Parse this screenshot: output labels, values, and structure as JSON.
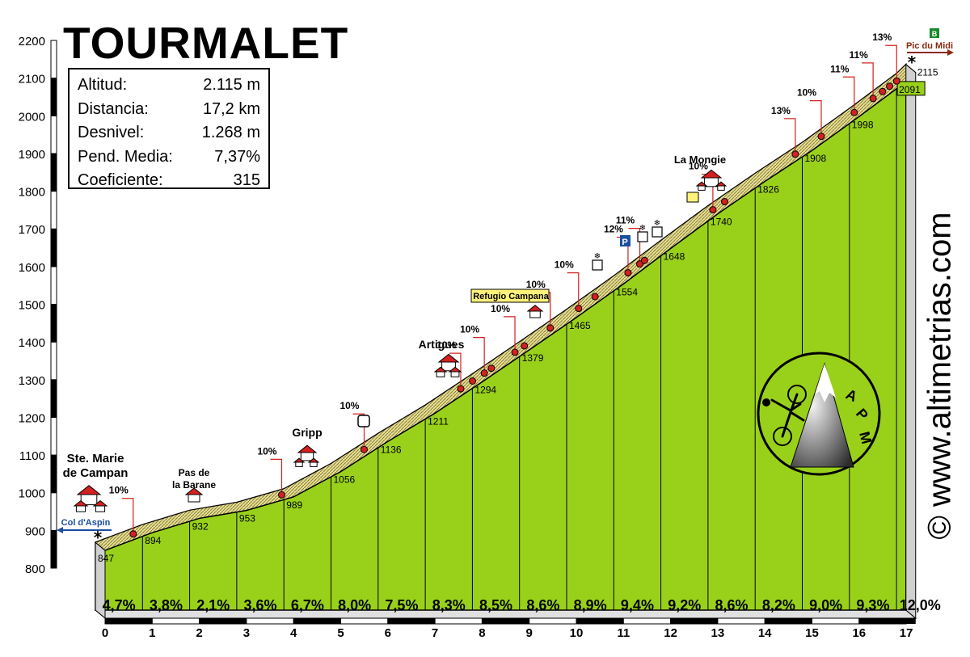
{
  "title": "TOURMALET",
  "stats": [
    {
      "label": "Altitud:",
      "value": "2.115 m"
    },
    {
      "label": "Distancia:",
      "value": "17,2 km"
    },
    {
      "label": "Desnivel:",
      "value": "1.268 m"
    },
    {
      "label": "Pend. Media:",
      "value": "7,37%"
    },
    {
      "label": "Coeficiente:",
      "value": "315"
    }
  ],
  "watermark": "© www.altimetrias.com",
  "logo_text": "APM",
  "colors": {
    "fill": "#99d11a",
    "road_top": "#e8e0a0",
    "road_side": "#8a7f2a",
    "marker": "#d42020",
    "sign": "#1a4fa0"
  },
  "chart_data": {
    "type": "area",
    "xlabel": "",
    "ylabel": "",
    "xlim": [
      0,
      17.2
    ],
    "ylim": [
      800,
      2200
    ],
    "x_ticks": [
      0,
      1,
      2,
      3,
      4,
      5,
      6,
      7,
      8,
      9,
      10,
      11,
      12,
      13,
      14,
      15,
      16,
      17
    ],
    "y_ticks": [
      800,
      900,
      1000,
      1100,
      1200,
      1300,
      1400,
      1500,
      1600,
      1700,
      1800,
      1900,
      2000,
      2100,
      2200
    ],
    "profile": [
      {
        "km": 0,
        "alt": 847
      },
      {
        "km": 1,
        "alt": 894
      },
      {
        "km": 2,
        "alt": 932
      },
      {
        "km": 3,
        "alt": 953
      },
      {
        "km": 4,
        "alt": 989
      },
      {
        "km": 5,
        "alt": 1056
      },
      {
        "km": 6,
        "alt": 1136
      },
      {
        "km": 7,
        "alt": 1211
      },
      {
        "km": 8,
        "alt": 1294
      },
      {
        "km": 9,
        "alt": 1379
      },
      {
        "km": 10,
        "alt": 1465
      },
      {
        "km": 11,
        "alt": 1554
      },
      {
        "km": 12,
        "alt": 1648
      },
      {
        "km": 13,
        "alt": 1740
      },
      {
        "km": 14,
        "alt": 1826
      },
      {
        "km": 15,
        "alt": 1908
      },
      {
        "km": 16,
        "alt": 1998
      },
      {
        "km": 17,
        "alt": 2091
      },
      {
        "km": 17.2,
        "alt": 2115
      }
    ],
    "altitude_labels": [
      "847",
      "894",
      "932",
      "953",
      "989",
      "1056",
      "1136",
      "1211",
      "1294",
      "1379",
      "1465",
      "1554",
      "1648",
      "1740",
      "1826",
      "1908",
      "1998",
      "2091",
      "2115"
    ],
    "segment_gradients": [
      "4,7%",
      "3,8%",
      "2,1%",
      "3,6%",
      "6,7%",
      "8,0%",
      "7,5%",
      "8,3%",
      "8,5%",
      "8,6%",
      "8,9%",
      "9,4%",
      "9,2%",
      "8,6%",
      "8,2%",
      "9,0%",
      "9,3%",
      "12,0%"
    ],
    "steep_markers": [
      {
        "km": 0.7,
        "label": "10%"
      },
      {
        "km": 3.85,
        "label": "10%"
      },
      {
        "km": 5.6,
        "label": "10%"
      },
      {
        "km": 7.65,
        "label": "10%"
      },
      {
        "km": 7.9,
        "label": ""
      },
      {
        "km": 8.15,
        "label": "10%"
      },
      {
        "km": 8.3,
        "label": ""
      },
      {
        "km": 8.8,
        "label": "10%"
      },
      {
        "km": 9.0,
        "label": ""
      },
      {
        "km": 9.55,
        "label": "10%"
      },
      {
        "km": 10.15,
        "label": "10%"
      },
      {
        "km": 10.5,
        "label": ""
      },
      {
        "km": 11.2,
        "label": "12%"
      },
      {
        "km": 11.45,
        "label": "11%"
      },
      {
        "km": 11.55,
        "label": ""
      },
      {
        "km": 13.0,
        "label": "10%"
      },
      {
        "km": 13.25,
        "label": ""
      },
      {
        "km": 14.75,
        "label": "13%"
      },
      {
        "km": 15.3,
        "label": "10%"
      },
      {
        "km": 16.0,
        "label": "11%"
      },
      {
        "km": 16.4,
        "label": "11%"
      },
      {
        "km": 16.6,
        "label": ""
      },
      {
        "km": 16.75,
        "label": ""
      },
      {
        "km": 16.9,
        "label": "13%"
      }
    ],
    "places": [
      {
        "km": 0,
        "name": "Ste. Marie\nde Campan"
      },
      {
        "km": 2.0,
        "name": "Pas de\nla Barane"
      },
      {
        "km": 4.2,
        "name": "Gripp"
      },
      {
        "km": 7.0,
        "name": "Artigues"
      },
      {
        "km": 9.05,
        "name": "Refugio Campana"
      },
      {
        "km": 13.1,
        "name": "La Mongie"
      }
    ],
    "direction_signs": [
      "Col d'Aspin",
      "Pic du Midi"
    ]
  }
}
